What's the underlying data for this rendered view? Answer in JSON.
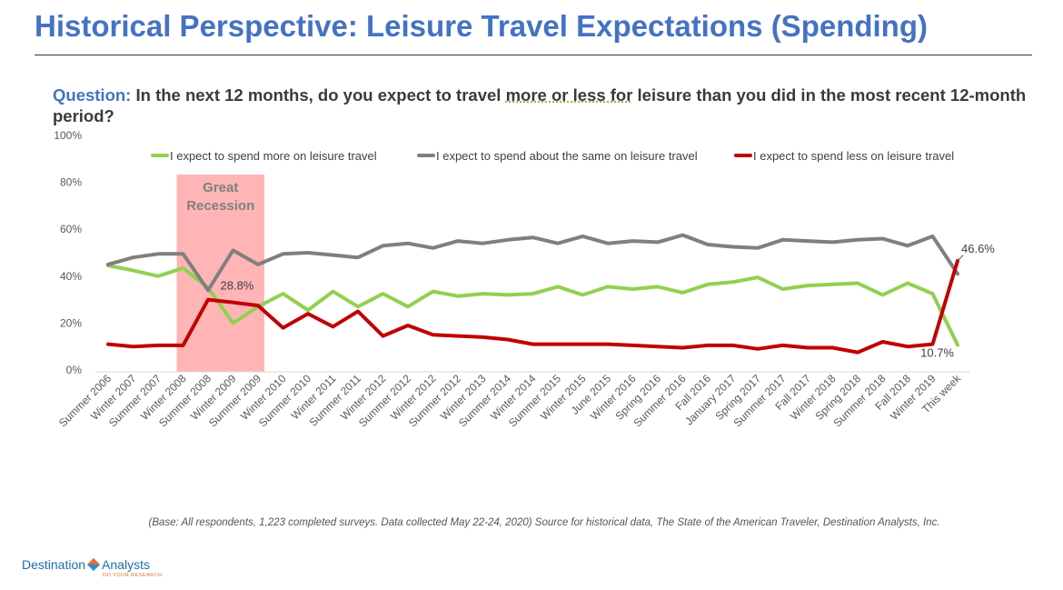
{
  "slide": {
    "title": "Historical Perspective: Leisure Travel Expectations (Spending)"
  },
  "question": {
    "label": "Question:",
    "text_before": " In the next 12 months, do you expect to travel ",
    "text_emph": "more or less for",
    "text_after": " leisure than you did in the most recent 12-month period?"
  },
  "footnote": "(Base: All respondents, 1,223 completed surveys. Data collected May 22-24, 2020) Source for historical data, The State of the American Traveler, Destination Analysts, Inc.",
  "logo": {
    "name_left": "Destination",
    "name_right": "Analysts",
    "tagline": "DO YOUR RESEARCH"
  },
  "colors": {
    "more": "#92d050",
    "same": "#7f7f7f",
    "less": "#c00000",
    "recession_band": "#ff9999",
    "title": "#4472c4"
  },
  "chart_data": {
    "type": "line",
    "ylim": [
      0,
      100
    ],
    "y_ticks": [
      "0%",
      "20%",
      "40%",
      "60%",
      "80%",
      "100%"
    ],
    "grid": false,
    "legend_position": "top",
    "categories": [
      "Summer 2006",
      "Winter 2007",
      "Summer 2007",
      "Winter 2008",
      "Summer 2008",
      "Winter 2009",
      "Summer 2009",
      "Winter 2010",
      "Summer 2010",
      "Winter 2011",
      "Summer 2011",
      "Winter 2012",
      "Summer 2012",
      "Winter 2012",
      "Summer 2012",
      "Winter 2013",
      "Summer 2014",
      "Winter 2014",
      "Summer 2015",
      "Winter 2015",
      "June 2015",
      "Winter 2016",
      "Spring 2016",
      "Summer 2016",
      "Fall 2016",
      "January 2017",
      "Spring 2017",
      "Summer 2017",
      "Fall 2017",
      "Winter 2018",
      "Spring 2018",
      "Summer 2018",
      "Fall 2018",
      "Winter 2019",
      "This week"
    ],
    "series": [
      {
        "name": "I expect to spend more on leisure travel",
        "values": [
          44.5,
          42.5,
          40,
          43.5,
          35,
          20,
          27,
          32.5,
          25.5,
          33.5,
          27,
          32.5,
          27,
          33.5,
          31.5,
          32.5,
          32,
          32.5,
          35.5,
          32,
          35.5,
          34.5,
          35.5,
          33,
          36.5,
          37.5,
          39.5,
          34.5,
          36,
          36.5,
          37,
          32,
          37,
          32.5,
          10.7
        ]
      },
      {
        "name": "I expect to spend about the same on leisure travel",
        "values": [
          45,
          48,
          49.5,
          49.5,
          34,
          51,
          45,
          49.5,
          50,
          49,
          48,
          53,
          54,
          52,
          55,
          54,
          55.5,
          56.5,
          54,
          57,
          54,
          55,
          54.5,
          57.5,
          53.5,
          52.5,
          52,
          55.5,
          55,
          54.5,
          55.5,
          56,
          53,
          57,
          41
        ]
      },
      {
        "name": "I expect to spend less on leisure travel",
        "values": [
          11,
          10,
          10.5,
          10.5,
          30,
          28.8,
          27.5,
          18,
          24,
          18.5,
          25,
          14.5,
          19,
          15,
          14.5,
          14,
          13,
          11,
          11,
          11,
          11,
          10.5,
          10,
          9.5,
          10.5,
          10.5,
          9,
          10.5,
          9.5,
          9.5,
          7.5,
          12,
          10,
          11,
          46.6
        ]
      }
    ],
    "annotations": [
      {
        "text": "Great Recession",
        "type": "shaded-band",
        "from_category": 3,
        "to_category": 6
      },
      {
        "text": "28.8%",
        "series": 2,
        "category": 5
      },
      {
        "text": "46.6%",
        "series": 2,
        "category": 34
      },
      {
        "text": "10.7%",
        "series": 0,
        "category": 34
      }
    ]
  }
}
